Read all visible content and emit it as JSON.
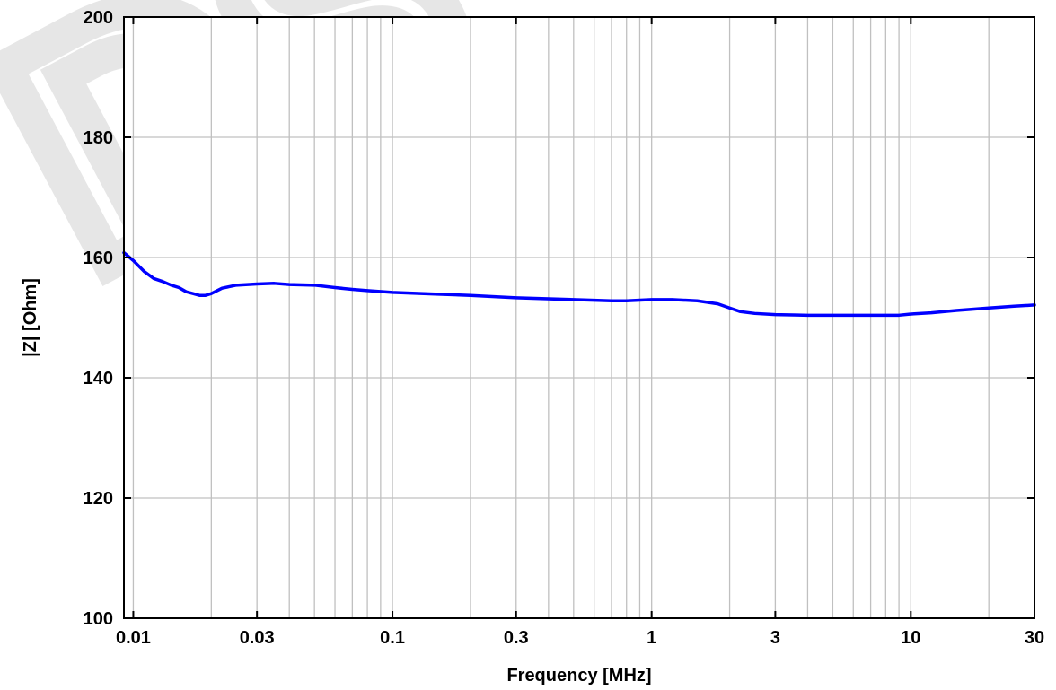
{
  "chart_data": {
    "type": "line",
    "title": "",
    "xlabel": "Frequency [MHz]",
    "ylabel": "|Z| [Ohm]",
    "xscale": "log",
    "xlim": [
      0.0092,
      30
    ],
    "ylim": [
      100,
      200
    ],
    "xticks": [
      {
        "value": 0.01,
        "label": "0.01"
      },
      {
        "value": 0.03,
        "label": "0.03"
      },
      {
        "value": 0.1,
        "label": "0.1"
      },
      {
        "value": 0.3,
        "label": "0.3"
      },
      {
        "value": 1,
        "label": "1"
      },
      {
        "value": 3,
        "label": "3"
      },
      {
        "value": 10,
        "label": "10"
      },
      {
        "value": 30,
        "label": "30"
      }
    ],
    "yticks": [
      {
        "value": 100,
        "label": "100"
      },
      {
        "value": 120,
        "label": "120"
      },
      {
        "value": 140,
        "label": "140"
      },
      {
        "value": 160,
        "label": "160"
      },
      {
        "value": 180,
        "label": "180"
      },
      {
        "value": 200,
        "label": "200"
      }
    ],
    "grid": true,
    "legend": "none",
    "series": [
      {
        "color": "#0000ff",
        "x": [
          0.0092,
          0.01,
          0.011,
          0.012,
          0.013,
          0.014,
          0.015,
          0.016,
          0.017,
          0.018,
          0.019,
          0.02,
          0.022,
          0.025,
          0.03,
          0.035,
          0.04,
          0.05,
          0.06,
          0.07,
          0.08,
          0.1,
          0.15,
          0.2,
          0.3,
          0.5,
          0.7,
          0.8,
          1,
          1.2,
          1.5,
          1.8,
          2,
          2.2,
          2.5,
          3,
          4,
          5,
          7,
          9,
          10,
          12,
          15,
          20,
          25,
          30
        ],
        "y": [
          160.8,
          159.5,
          157.7,
          156.5,
          156.0,
          155.4,
          155.0,
          154.3,
          154.0,
          153.7,
          153.7,
          154.0,
          154.9,
          155.4,
          155.6,
          155.7,
          155.5,
          155.4,
          155.0,
          154.7,
          154.5,
          154.2,
          153.9,
          153.7,
          153.3,
          153.0,
          152.8,
          152.8,
          153.0,
          153.0,
          152.8,
          152.3,
          151.6,
          151.0,
          150.7,
          150.5,
          150.4,
          150.4,
          150.4,
          150.4,
          150.6,
          150.8,
          151.2,
          151.6,
          151.9,
          152.1
        ]
      }
    ]
  }
}
